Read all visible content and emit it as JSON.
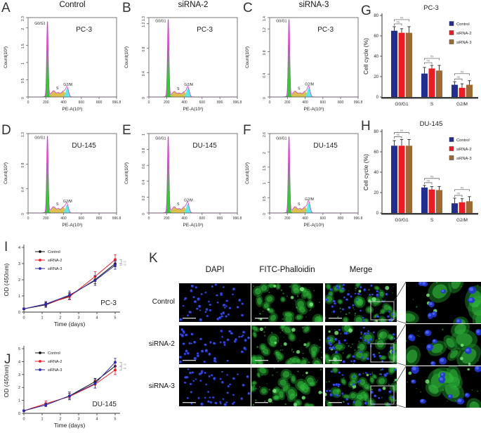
{
  "figure": {
    "background": "#ffffff"
  },
  "palette": {
    "g0g1_fill": "#3cc43c",
    "s_fill": "#d9c050",
    "g2m_fill": "#5fe8e8",
    "outline": "#cf3ccf",
    "navy": "#232e8c",
    "red": "#ec1c24",
    "brown": "#9e6a33"
  },
  "chart_data": [
    {
      "panel": "A",
      "type": "histogram",
      "title": "Control",
      "cell_line": "PC-3",
      "xlabel": "PE-A(10³)",
      "ylabel": "Count(10³)",
      "x_ticks": [
        0,
        200,
        400,
        600,
        800,
        996.8
      ],
      "y_ticks": [
        0,
        0.5,
        1,
        1.5,
        2,
        2.3
      ],
      "xlim": [
        0,
        996.8
      ],
      "ylim": [
        0,
        2.3
      ],
      "phase_labels": [
        "G0/G1",
        "S",
        "G2/M"
      ],
      "g0g1_peak_x": 218,
      "g0g1_count": 2.2,
      "s_count": 0.14,
      "g2m_peak_x": 440,
      "g2m_count": 0.26
    },
    {
      "panel": "B",
      "type": "histogram",
      "title": "siRNA-2",
      "cell_line": "PC-3",
      "xlabel": "PE-A(10³)",
      "ylabel": "Count(10³)",
      "x_ticks": [
        0,
        200,
        400,
        600,
        800,
        996.8
      ],
      "y_ticks": [
        0,
        0.4,
        0.8,
        1.2,
        1.3
      ],
      "xlim": [
        0,
        996.8
      ],
      "ylim": [
        0,
        1.3
      ],
      "phase_labels": [
        "G0/G1",
        "S",
        "G2/M"
      ],
      "g0g1_peak_x": 218,
      "g0g1_count": 1.28,
      "s_count": 0.07,
      "g2m_peak_x": 440,
      "g2m_count": 0.15
    },
    {
      "panel": "C",
      "type": "histogram",
      "title": "siRNA-3",
      "cell_line": "PC-3",
      "xlabel": "PE-A(10³)",
      "ylabel": "Count(10³)",
      "x_ticks": [
        0,
        200,
        400,
        600,
        800,
        996.8
      ],
      "y_ticks": [
        0,
        0.4,
        0.8,
        1.2,
        1.4
      ],
      "xlim": [
        0,
        996.8
      ],
      "ylim": [
        0,
        1.4
      ],
      "phase_labels": [
        "G0/G1",
        "S",
        "G2/M"
      ],
      "g0g1_peak_x": 218,
      "g0g1_count": 1.38,
      "s_count": 0.08,
      "g2m_peak_x": 440,
      "g2m_count": 0.17
    },
    {
      "panel": "D",
      "type": "histogram",
      "title": "",
      "cell_line": "DU-145",
      "xlabel": "PE-A(10³)",
      "ylabel": "Count(10³)",
      "x_ticks": [
        0,
        200,
        400,
        600,
        800,
        996.8
      ],
      "y_ticks": [
        0,
        0.4,
        0.8,
        1.3
      ],
      "xlim": [
        0,
        996.8
      ],
      "ylim": [
        0,
        1.3
      ],
      "phase_labels": [
        "G0/G1",
        "S",
        "G2/M"
      ],
      "g0g1_peak_x": 218,
      "g0g1_count": 1.27,
      "s_count": 0.08,
      "g2m_peak_x": 438,
      "g2m_count": 0.14
    },
    {
      "panel": "E",
      "type": "histogram",
      "title": "",
      "cell_line": "DU-145",
      "xlabel": "PE-A(10³)",
      "ylabel": "Count(10³)",
      "x_ticks": [
        0,
        200,
        400,
        600,
        800,
        996.8
      ],
      "y_ticks": [
        0,
        0.2,
        0.4,
        0.6,
        0.8,
        1
      ],
      "xlim": [
        0,
        996.8
      ],
      "ylim": [
        0,
        1.0
      ],
      "phase_labels": [
        "G0/G1",
        "S",
        "G2/M"
      ],
      "g0g1_peak_x": 218,
      "g0g1_count": 0.97,
      "s_count": 0.06,
      "g2m_peak_x": 438,
      "g2m_count": 0.12
    },
    {
      "panel": "F",
      "type": "histogram",
      "title": "",
      "cell_line": "DU-145",
      "xlabel": "PE-A(10³)",
      "ylabel": "Count(10³)",
      "x_ticks": [
        0,
        200,
        400,
        600,
        800,
        996.8
      ],
      "y_ticks": [
        0,
        0.5,
        1,
        1.5,
        2,
        2.6
      ],
      "xlim": [
        0,
        996.8
      ],
      "ylim": [
        0,
        2.6
      ],
      "phase_labels": [
        "G0/G1",
        "S",
        "G2/M"
      ],
      "g0g1_peak_x": 218,
      "g0g1_count": 2.52,
      "s_count": 0.16,
      "g2m_peak_x": 440,
      "g2m_count": 0.35
    },
    {
      "panel": "G",
      "type": "bar",
      "title": "PC-3",
      "ylabel": "Cell cycle (%)",
      "categories": [
        "G0/G1",
        "S",
        "G2/M"
      ],
      "y_ticks": [
        0,
        20,
        40,
        60,
        80
      ],
      "ylim": [
        0,
        80
      ],
      "sig_label": "ns",
      "series": [
        {
          "name": "Control",
          "color": "#232e8c",
          "values": [
            65,
            23,
            12
          ],
          "errors": [
            4,
            6,
            3
          ]
        },
        {
          "name": "siRNA-2",
          "color": "#ec1c24",
          "values": [
            63,
            28,
            9
          ],
          "errors": [
            4,
            3,
            4
          ]
        },
        {
          "name": "siRNA-3",
          "color": "#9e6a33",
          "values": [
            63,
            26,
            12
          ],
          "errors": [
            6,
            5,
            4
          ]
        }
      ]
    },
    {
      "panel": "H",
      "type": "bar",
      "title": "DU-145",
      "ylabel": "Cell cycle (%)",
      "categories": [
        "G0/G1",
        "S",
        "G2/M"
      ],
      "y_ticks": [
        0,
        20,
        40,
        60,
        80
      ],
      "ylim": [
        0,
        80
      ],
      "sig_label": "ns",
      "series": [
        {
          "name": "Control",
          "color": "#232e8c",
          "values": [
            66,
            25,
            9.5
          ],
          "errors": [
            5,
            2,
            5
          ]
        },
        {
          "name": "siRNA-2",
          "color": "#ec1c24",
          "values": [
            66,
            23,
            10.5
          ],
          "errors": [
            6,
            3,
            3.5
          ]
        },
        {
          "name": "siRNA-3",
          "color": "#9e6a33",
          "values": [
            66,
            22.5,
            11.5
          ],
          "errors": [
            6,
            3.5,
            4.5
          ]
        }
      ]
    },
    {
      "panel": "I",
      "type": "line",
      "cell_line": "PC-3",
      "xlabel": "Time (days)",
      "ylabel": "OD (450nm)",
      "x": [
        0,
        1.2,
        2.5,
        3.9,
        5
      ],
      "x_ticks": [
        0,
        1,
        2,
        3,
        4,
        5
      ],
      "y_ticks": [
        0,
        1,
        2,
        3,
        4
      ],
      "ylim": [
        0,
        4
      ],
      "end_sig_labels": [
        "ns",
        "ns"
      ],
      "series": [
        {
          "name": "Control",
          "color": "#111111",
          "values": [
            0.2,
            0.45,
            1.0,
            2.0,
            3.0
          ],
          "errors": [
            0.05,
            0.15,
            0.2,
            0.25,
            0.2
          ]
        },
        {
          "name": "siRNA-2",
          "color": "#ec1c24",
          "values": [
            0.2,
            0.5,
            0.95,
            2.2,
            3.25
          ],
          "errors": [
            0.05,
            0.15,
            0.2,
            0.3,
            0.3
          ]
        },
        {
          "name": "siRNA-3",
          "color": "#2b2ba6",
          "values": [
            0.2,
            0.5,
            1.05,
            1.95,
            2.9
          ],
          "errors": [
            0.05,
            0.15,
            0.25,
            0.3,
            0.25
          ]
        }
      ]
    },
    {
      "panel": "J",
      "type": "line",
      "cell_line": "DU-145",
      "xlabel": "Time (days)",
      "ylabel": "OD (450nm)",
      "x": [
        0,
        1.2,
        2.5,
        3.9,
        5
      ],
      "x_ticks": [
        0,
        1,
        2,
        3,
        4,
        5
      ],
      "y_ticks": [
        0,
        1,
        2,
        3,
        4,
        5
      ],
      "ylim": [
        0,
        5
      ],
      "end_sig_labels": [
        "ns",
        "ns"
      ],
      "series": [
        {
          "name": "Control",
          "color": "#111111",
          "values": [
            0.2,
            0.65,
            1.35,
            2.45,
            3.65
          ],
          "errors": [
            0.05,
            0.12,
            0.2,
            0.25,
            0.3
          ]
        },
        {
          "name": "siRNA-2",
          "color": "#ec1c24",
          "values": [
            0.2,
            0.75,
            1.3,
            2.25,
            3.35
          ],
          "errors": [
            0.05,
            0.2,
            0.25,
            0.3,
            0.35
          ]
        },
        {
          "name": "siRNA-3",
          "color": "#2b2ba6",
          "values": [
            0.2,
            0.65,
            1.35,
            2.3,
            3.95
          ],
          "errors": [
            0.05,
            0.12,
            0.3,
            0.35,
            0.3
          ]
        }
      ]
    }
  ],
  "microscopy": {
    "panel": "K",
    "column_headers": [
      "DAPI",
      "FITC-Phalloidin",
      "Merge"
    ],
    "row_labels": [
      "Control",
      "siRNA-2",
      "siRNA-3"
    ],
    "colors": {
      "nucleus_blue": "#2135cf",
      "actin_green": "#1d8f2a",
      "background": "#000000"
    }
  }
}
